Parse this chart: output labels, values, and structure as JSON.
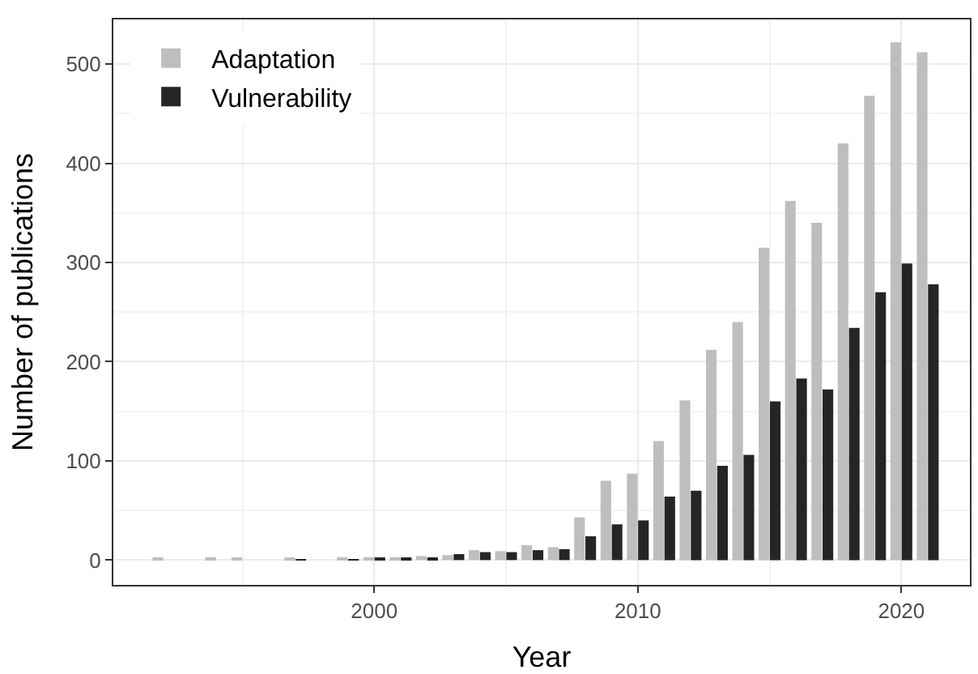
{
  "chart_data": {
    "type": "bar",
    "xlabel": "Year",
    "ylabel": "Number of publications",
    "x": [
      1992,
      1994,
      1995,
      1997,
      1999,
      2000,
      2001,
      2002,
      2003,
      2004,
      2005,
      2006,
      2007,
      2008,
      2009,
      2010,
      2011,
      2012,
      2013,
      2014,
      2015,
      2016,
      2017,
      2018,
      2019,
      2020,
      2021
    ],
    "series": [
      {
        "name": "Adaptation",
        "color": "#bebebe",
        "values": [
          2,
          3,
          2,
          2,
          3,
          3,
          3,
          4,
          5,
          10,
          9,
          15,
          13,
          43,
          80,
          87,
          120,
          161,
          212,
          240,
          315,
          362,
          340,
          420,
          468,
          522,
          512
        ]
      },
      {
        "name": "Vulnerability",
        "color": "#252525",
        "values": [
          null,
          null,
          null,
          1,
          1,
          2,
          2,
          2,
          6,
          8,
          8,
          10,
          11,
          24,
          36,
          40,
          64,
          70,
          95,
          106,
          160,
          183,
          172,
          234,
          270,
          299,
          278
        ]
      }
    ],
    "xlim": [
      1990.1,
      2022.6
    ],
    "xticks": [
      2000,
      2010,
      2020
    ],
    "ylim": [
      -25,
      545
    ],
    "yticks": [
      0,
      100,
      200,
      300,
      400,
      500
    ],
    "grid": true,
    "legend": "top left"
  }
}
